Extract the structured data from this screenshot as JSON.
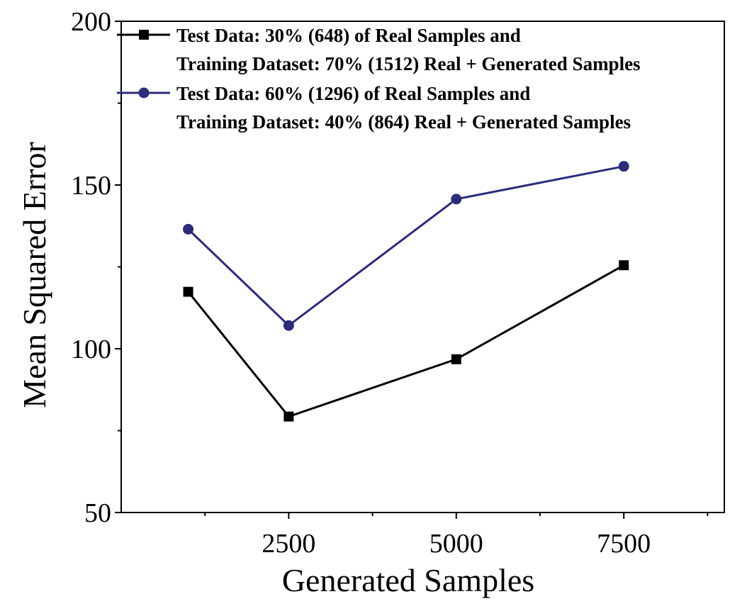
{
  "chart_data": {
    "type": "line",
    "title": "",
    "xlabel": "Generated Samples",
    "ylabel": "Mean Squared Error",
    "xlim": [
      0,
      9000
    ],
    "ylim": [
      50,
      200
    ],
    "xticks": [
      2500,
      5000,
      7500
    ],
    "yticks": [
      50,
      100,
      150,
      200
    ],
    "grid": false,
    "legend_position": "top-left",
    "x": [
      1000,
      2500,
      5000,
      7500
    ],
    "series": [
      {
        "name_lines": [
          "Test Data: 30% (648) of Real Samples and",
          "Training Dataset: 70% (1512) Real + Generated Samples"
        ],
        "values": [
          117.4,
          79.3,
          96.8,
          125.5
        ],
        "color": "#000000",
        "marker": "square"
      },
      {
        "name_lines": [
          "Test Data: 60% (1296) of Real Samples and",
          "Training Dataset: 40% (864) Real + Generated Samples"
        ],
        "values": [
          136.5,
          107.1,
          145.7,
          155.7
        ],
        "color": "#2b2c7c",
        "marker": "circle"
      }
    ]
  }
}
